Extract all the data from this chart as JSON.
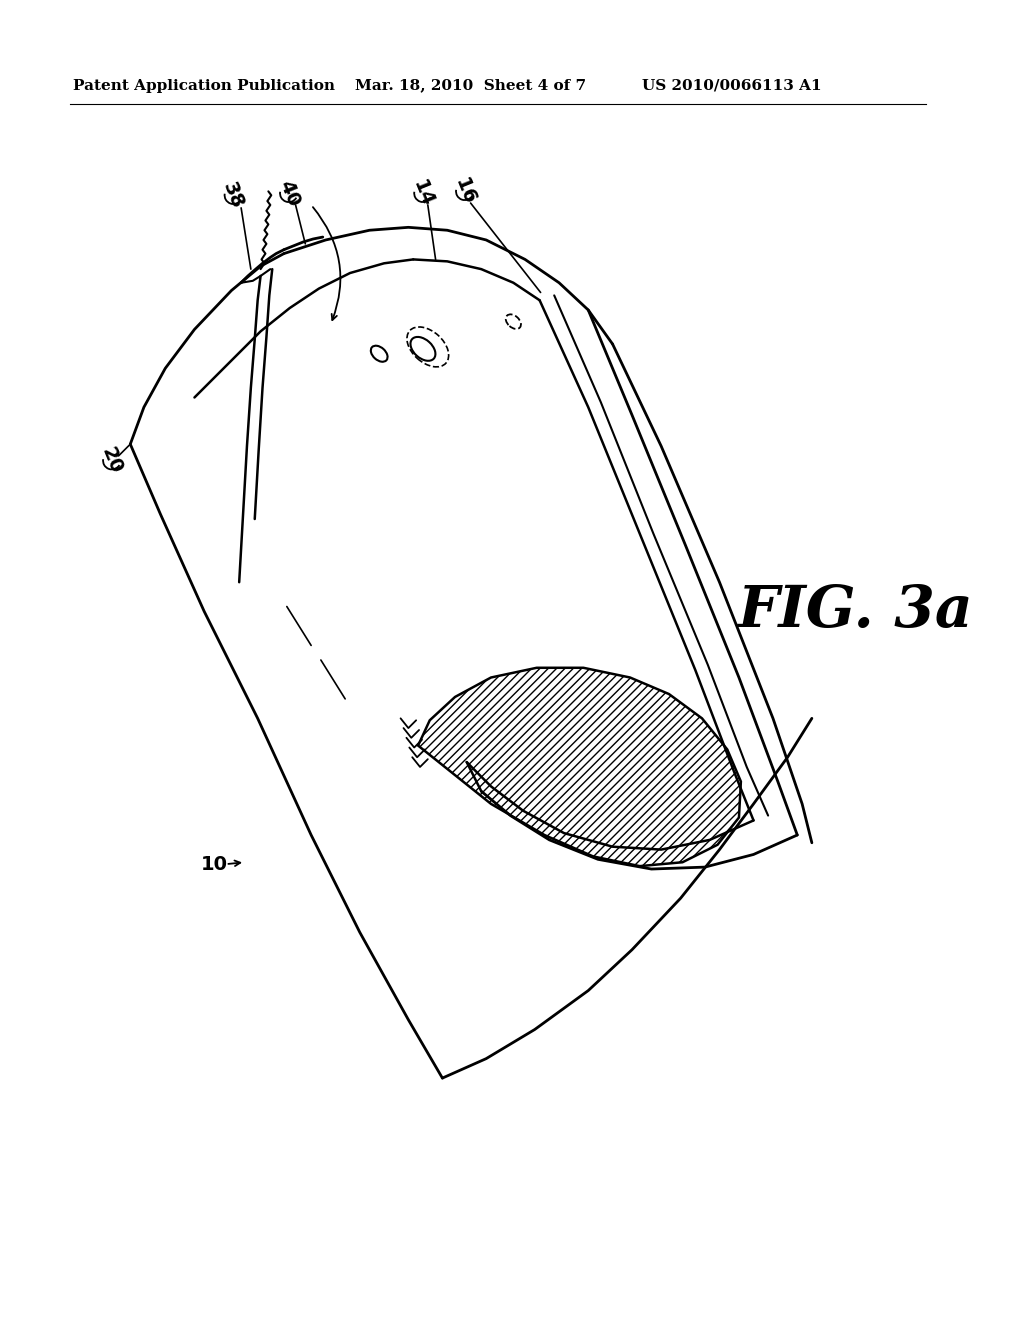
{
  "title_left": "Patent Application Publication",
  "title_mid": "Mar. 18, 2010  Sheet 4 of 7",
  "title_right": "US 2010/0066113 A1",
  "fig_label": "FIG. 3a",
  "bg_color": "#ffffff",
  "lc": "#000000",
  "header_fontsize": 11,
  "fig_label_fontsize": 42,
  "label_fontsize": 14
}
